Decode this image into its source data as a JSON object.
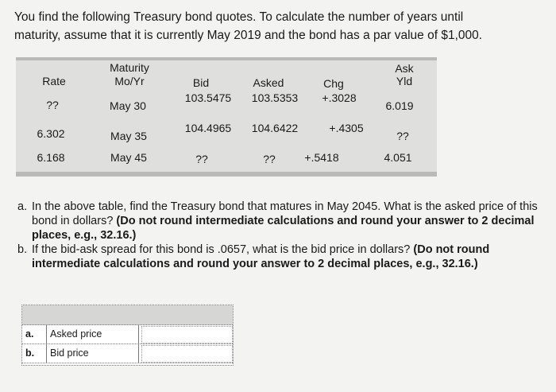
{
  "intro": [
    "You find the following Treasury bond quotes. To calculate the number of years until",
    "maturity, assume that it is currently May 2019 and the bond has a par value of $1,000."
  ],
  "table": {
    "headers": {
      "rate": "Rate",
      "maturity": [
        "Maturity",
        "Mo/Yr"
      ],
      "bid": "Bid",
      "asked": "Asked",
      "chg": "Chg",
      "ask_yld": [
        "Ask",
        "Yld"
      ]
    },
    "rows": [
      [
        "??",
        "May 30",
        "103.5475",
        "103.5353",
        "+.3028",
        "6.019"
      ],
      [
        "6.302",
        "May 35",
        "104.4965",
        "104.6422",
        "+.4305",
        "??"
      ],
      [
        "6.168",
        "May 45",
        "??",
        "??",
        "+.5418",
        "4.051"
      ]
    ]
  },
  "questions": [
    {
      "letter": "a.",
      "text": "In the above table, find the Treasury bond that matures in May 2045. What is the asked price of this bond in dollars?",
      "note": "(Do not round intermediate calculations and round your answer to 2 decimal places, e.g., 32.16.)"
    },
    {
      "letter": "b.",
      "text": "If the bid-ask spread for this bond is .0657, what is the bid price in dollars?",
      "note": "(Do not round intermediate calculations and round your answer to 2 decimal places, e.g., 32.16.)"
    }
  ],
  "answers": [
    {
      "letter": "a.",
      "label": "Asked price"
    },
    {
      "letter": "b.",
      "label": "Bid price"
    }
  ]
}
